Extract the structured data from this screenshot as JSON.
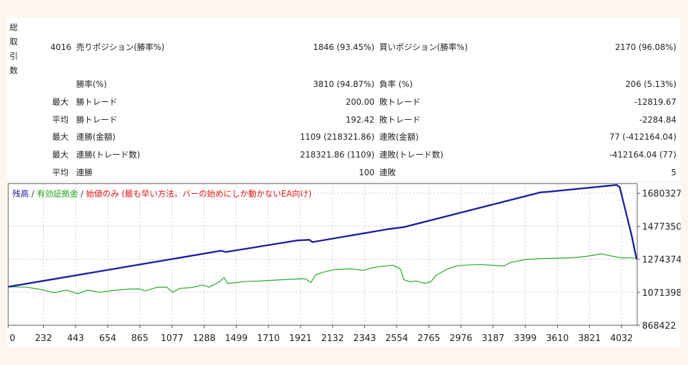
{
  "report": {
    "vertical_label": "総取引数",
    "total_trades": "4016",
    "sell_label": "売りポジション(勝率%)",
    "sell_value": "1846 (93.45%)",
    "buy_label": "買いポジション(勝率%)",
    "buy_value": "2170 (96.08%)",
    "rows": [
      {
        "prefix": "",
        "label1": "勝率(%)",
        "value1": "3810 (94.87%)",
        "label2": "負率 (%)",
        "value2": "206 (5.13%)"
      },
      {
        "prefix": "最大",
        "label1": "勝トレード",
        "value1": "200.00",
        "label2": "敗トレード",
        "value2": "-12819.67"
      },
      {
        "prefix": "平均",
        "label1": "勝トレード",
        "value1": "192.42",
        "label2": "敗トレード",
        "value2": "-2284.84"
      },
      {
        "prefix": "最大",
        "label1": "連勝(金額)",
        "value1": "1109 (218321.86)",
        "label2": "連敗(金額)",
        "value2": "77 (-412164.04)"
      },
      {
        "prefix": "最大",
        "label1": "連勝(トレード数)",
        "value1": "218321.86 (1109)",
        "label2": "連敗(トレード数)",
        "value2": "-412164.04 (77)"
      },
      {
        "prefix": "平均",
        "label1": "連勝",
        "value1": "100",
        "label2": "連敗",
        "value2": "5"
      }
    ]
  },
  "legend": {
    "balance": "残高",
    "sep1": " / ",
    "equity": "有効証拠金",
    "sep2": " / ",
    "note": "始値のみ (最も早い方法。バーの始めにしか動かないEA向け)"
  },
  "colors": {
    "balance": "#1c1ca0",
    "equity": "#1fa81f",
    "note": "#e01818",
    "grid": "#c8c8c8"
  },
  "chart_data": {
    "type": "line",
    "x_ticks": [
      "0",
      "232",
      "443",
      "654",
      "865",
      "1077",
      "1288",
      "1499",
      "1710",
      "1921",
      "2132",
      "2343",
      "2554",
      "2765",
      "2976",
      "3187",
      "3399",
      "3610",
      "3821",
      "4032"
    ],
    "y_ticks": [
      "1680327",
      "1477350",
      "1274374",
      "1071398",
      "868422"
    ],
    "xlim": [
      0,
      4135
    ],
    "ylim": [
      868422,
      1740000
    ],
    "series": [
      {
        "name": "残高",
        "x": [
          0,
          1400,
          1430,
          1900,
          1980,
          2000,
          2500,
          2600,
          3500,
          3550,
          4000,
          4020,
          4100,
          4130
        ],
        "y": [
          1105000,
          1327000,
          1319000,
          1390000,
          1394000,
          1380000,
          1460000,
          1472000,
          1686000,
          1689000,
          1731000,
          1717000,
          1414000,
          1277000
        ]
      },
      {
        "name": "有効証拠金",
        "x": [
          0,
          120,
          220,
          300,
          380,
          460,
          520,
          600,
          700,
          800,
          860,
          900,
          980,
          1040,
          1080,
          1130,
          1200,
          1280,
          1320,
          1380,
          1420,
          1440,
          1470,
          1550,
          1650,
          1750,
          1850,
          1950,
          1990,
          2020,
          2070,
          2150,
          2250,
          2340,
          2400,
          2470,
          2530,
          2580,
          2600,
          2640,
          2680,
          2740,
          2780,
          2810,
          2880,
          2950,
          3000,
          3100,
          3200,
          3260,
          3300,
          3400,
          3500,
          3600,
          3700,
          3800,
          3900,
          3960,
          4030,
          4060,
          4100,
          4130
        ],
        "y": [
          1105000,
          1103000,
          1088000,
          1068000,
          1085000,
          1063000,
          1085000,
          1072000,
          1083000,
          1091000,
          1092000,
          1080000,
          1102000,
          1104000,
          1072000,
          1095000,
          1100000,
          1116000,
          1103000,
          1131000,
          1162000,
          1127000,
          1128000,
          1137000,
          1141000,
          1146000,
          1151000,
          1155000,
          1132000,
          1178000,
          1195000,
          1211000,
          1216000,
          1206000,
          1224000,
          1232000,
          1238000,
          1213000,
          1149000,
          1136000,
          1141000,
          1126000,
          1138000,
          1174000,
          1211000,
          1234000,
          1238000,
          1242000,
          1237000,
          1233000,
          1254000,
          1273000,
          1278000,
          1281000,
          1283000,
          1292000,
          1308000,
          1295000,
          1283000,
          1282000,
          1284000,
          1277000
        ]
      }
    ]
  }
}
